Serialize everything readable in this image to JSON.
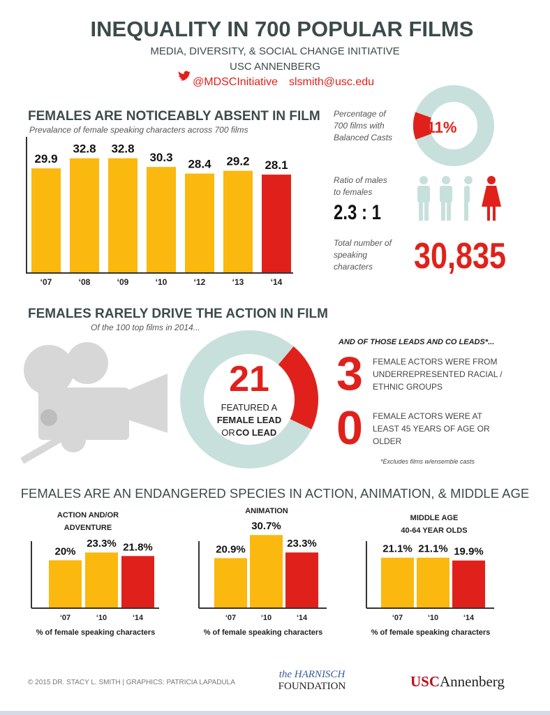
{
  "header": {
    "title": "INEQUALITY IN 700 POPULAR FILMS",
    "subtitle": "MEDIA, DIVERSITY, & SOCIAL CHANGE INITIATIVE",
    "org": "USC ANNENBERG",
    "twitter": "@MDSCInitiative",
    "email": "slsmith@usc.edu"
  },
  "chart_data": [
    {
      "type": "bar",
      "title": "FEMALES ARE NOTICEABLY ABSENT IN FILM",
      "subtitle": "Prevalance of female speaking characters across 700 films",
      "categories": [
        "‘07",
        "‘08",
        "‘09",
        "‘10",
        "‘12",
        "‘13",
        "‘14"
      ],
      "values": [
        29.9,
        32.8,
        32.8,
        30.3,
        28.4,
        29.2,
        28.1
      ],
      "colors": [
        "#fbb80f",
        "#fbb80f",
        "#fbb80f",
        "#fbb80f",
        "#fbb80f",
        "#fbb80f",
        "#e0211b"
      ]
    },
    {
      "type": "pie",
      "label_lines": [
        "Percentage of",
        "700 films with",
        "Balanced Casts"
      ],
      "values": [
        11
      ],
      "value_labels": [
        "11%"
      ],
      "colors": [
        "#e0211b"
      ],
      "ring_color": "#c8e0dc"
    },
    {
      "type": "pie",
      "title": "FEMALES RARELY DRIVE THE ACTION IN FILM",
      "subtitle": "Of the 100 top films in 2014...",
      "values": [
        21
      ],
      "colors": [
        "#e0211b"
      ],
      "ring_color": "#c8e0dc",
      "text_lines": [
        "FEATURED A",
        "FEMALE LEAD",
        "OR",
        "CO LEAD"
      ]
    },
    {
      "type": "bar",
      "title_lines": [
        "ACTION AND/OR",
        "ADVENTURE"
      ],
      "categories": [
        "‘07",
        "‘10",
        "‘14"
      ],
      "values": [
        20,
        23.3,
        21.8
      ],
      "value_labels": [
        "20%",
        "23.3%",
        "21.8%"
      ],
      "colors": [
        "#fbb80f",
        "#fbb80f",
        "#e0211b"
      ],
      "x_label": "% of female speaking characters"
    },
    {
      "type": "bar",
      "title_lines": [
        "ANIMATION"
      ],
      "categories": [
        "‘07",
        "‘10",
        "‘14"
      ],
      "values": [
        20.9,
        30.7,
        23.3
      ],
      "value_labels": [
        "20.9%",
        "30.7%",
        "23.3%"
      ],
      "colors": [
        "#fbb80f",
        "#fbb80f",
        "#e0211b"
      ],
      "x_label": "% of female speaking characters"
    },
    {
      "type": "bar",
      "title_lines": [
        "MIDDLE AGE",
        "40-64 YEAR OLDS"
      ],
      "categories": [
        "‘07",
        "‘10",
        "‘14"
      ],
      "values": [
        21.1,
        21.1,
        19.9
      ],
      "value_labels": [
        "21.1%",
        "21.1%",
        "19.9%"
      ],
      "colors": [
        "#fbb80f",
        "#fbb80f",
        "#e0211b"
      ],
      "x_label": "% of female speaking characters"
    }
  ],
  "stats": {
    "ratio_lines": [
      "Ratio of males",
      "to females"
    ],
    "ratio": "2.3 : 1",
    "total_lines": [
      "Total number of",
      "speaking",
      "characters"
    ],
    "total": "30,835"
  },
  "leads": {
    "heading": "AND OF THOSE LEADS AND CO LEADS*...",
    "items": [
      {
        "number": 3,
        "lines": [
          "FEMALE ACTORS WERE FROM",
          "UNDERREPRESENTED RACIAL /",
          "ETHNIC GROUPS"
        ]
      },
      {
        "number": 0,
        "lines": [
          "FEMALE ACTORS WERE AT",
          "LEAST 45 YEARS OF AGE OR",
          "OLDER"
        ]
      }
    ],
    "note": "*Excludes films w/ensemble casts"
  },
  "section3": {
    "title": "FEMALES ARE AN ENDANGERED SPECIES IN ACTION, ANIMATION, & MIDDLE AGE"
  },
  "footer": {
    "credit": "© 2015 DR. STACY L. SMITH | GRAPHICS: PATRICIA LAPADULA",
    "harnisch_1": "the HARNISCH",
    "harnisch_2": "FOUNDATION",
    "usc": "USC",
    "annenberg": "Annenberg"
  }
}
